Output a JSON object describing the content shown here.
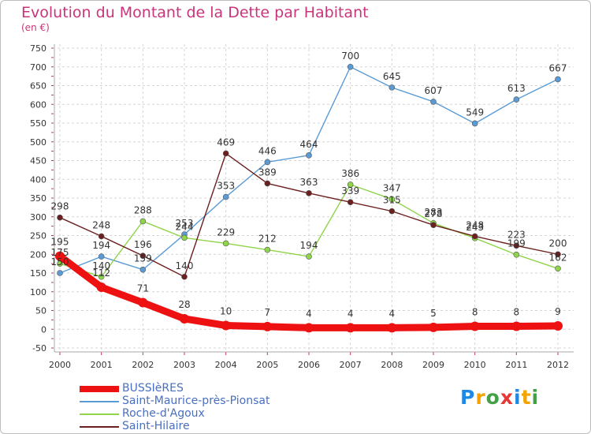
{
  "title": "Evolution du Montant de la Dette par Habitant",
  "subtitle": "(en €)",
  "logo": {
    "text": "Proxiti",
    "colors": [
      "#1e88e5",
      "#f4a300",
      "#43a047",
      "#e53935",
      "#1e88e5",
      "#f4a300",
      "#43a047"
    ]
  },
  "chart_data": {
    "type": "line",
    "title": "Evolution du Montant de la Dette par Habitant",
    "subtitle": "(en €)",
    "xlabel": "",
    "ylabel": "",
    "x": [
      "2000",
      "2001",
      "2002",
      "2003",
      "2004",
      "2005",
      "2006",
      "2007",
      "2008",
      "2009",
      "2010",
      "2011",
      "2012"
    ],
    "ylim": [
      -50,
      750
    ],
    "yticks": [
      -50,
      0,
      50,
      100,
      150,
      200,
      250,
      300,
      350,
      400,
      450,
      500,
      550,
      600,
      650,
      700,
      750
    ],
    "grid": true,
    "legend_position": "bottom-left",
    "series": [
      {
        "name": "BUSSIèRES",
        "color": "#ee1111",
        "values": [
          195,
          112,
          71,
          28,
          10,
          7,
          4,
          4,
          4,
          5,
          8,
          8,
          9
        ]
      },
      {
        "name": "Saint-Maurice-près-Pionsat",
        "color": "#5b9bd5",
        "values": [
          150,
          194,
          159,
          253,
          353,
          446,
          464,
          700,
          645,
          607,
          549,
          613,
          667
        ]
      },
      {
        "name": "Roche-d'Agoux",
        "color": "#8fd44a",
        "values": [
          175,
          140,
          288,
          244,
          229,
          212,
          194,
          386,
          347,
          283,
          243,
          199,
          162
        ]
      },
      {
        "name": "Saint-Hilaire",
        "color": "#6b1f1f",
        "values": [
          298,
          248,
          196,
          140,
          469,
          389,
          363,
          339,
          315,
          278,
          248,
          223,
          200
        ]
      }
    ]
  }
}
